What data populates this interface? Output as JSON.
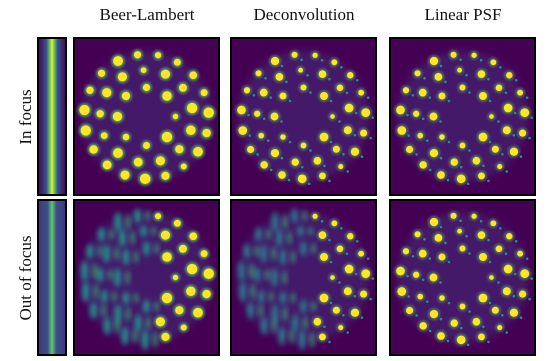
{
  "column_headers": [
    "Beer-Lambert",
    "Deconvolution",
    "Linear PSF"
  ],
  "row_labels": [
    "In focus",
    "Out of focus"
  ]
}
